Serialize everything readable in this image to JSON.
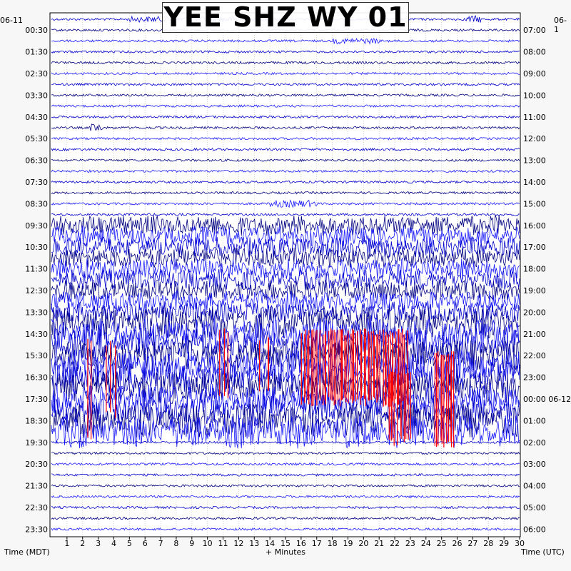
{
  "chart_data": {
    "type": "line",
    "title": "YEE SHZ WY 01",
    "xlabel": "+ Minutes",
    "xlim": [
      0,
      30
    ],
    "x_ticks": [
      1,
      2,
      3,
      4,
      5,
      6,
      7,
      8,
      9,
      10,
      11,
      12,
      13,
      14,
      15,
      16,
      17,
      18,
      19,
      20,
      21,
      22,
      23,
      24,
      25,
      26,
      27,
      28,
      29,
      30
    ],
    "left_axis_label": "Time (MDT)",
    "right_axis_label": "Time (UTC)",
    "left_date": "06-11",
    "right_date_top": "06-1",
    "right_date_mid": "06-12",
    "left_ticks": [
      "00:30",
      "01:30",
      "02:30",
      "03:30",
      "04:30",
      "05:30",
      "06:30",
      "07:30",
      "08:30",
      "09:30",
      "10:30",
      "11:30",
      "12:30",
      "13:30",
      "14:30",
      "15:30",
      "16:30",
      "17:30",
      "18:30",
      "19:30",
      "20:30",
      "21:30",
      "22:30",
      "23:30"
    ],
    "right_ticks": [
      "07:00",
      "08:00",
      "09:00",
      "10:00",
      "11:00",
      "12:00",
      "13:00",
      "14:00",
      "15:00",
      "16:00",
      "17:00",
      "18:00",
      "19:00",
      "20:00",
      "21:00",
      "22:00",
      "23:00",
      "00:00",
      "01:00",
      "02:00",
      "03:00",
      "04:00",
      "05:00",
      "06:00"
    ],
    "trace_count": 48,
    "minutes_per_trace": 30,
    "trace_colors": [
      "#0000cc",
      "#000080",
      "#1a1aff"
    ],
    "clip_color": "#ff0000",
    "grid": true
  }
}
